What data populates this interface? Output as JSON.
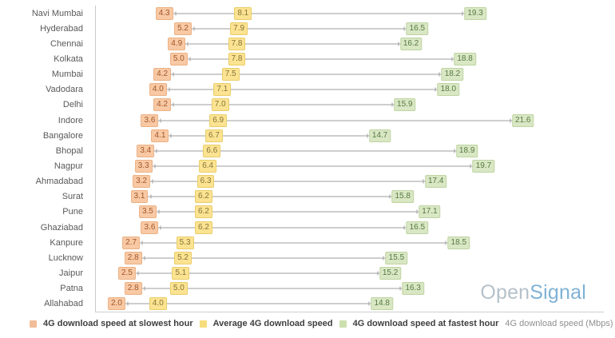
{
  "chart_data": {
    "type": "dumbbell",
    "title": "",
    "xlabel": "4G download speed (Mbps)",
    "ylabel": "",
    "x_range": [
      1.0,
      25.5
    ],
    "grid": false,
    "legend_position": "bottom",
    "categories": [
      "Navi Mumbai",
      "Hyderabad",
      "Chennai",
      "Kolkata",
      "Mumbai",
      "Vadodara",
      "Delhi",
      "Indore",
      "Bangalore",
      "Bhopal",
      "Nagpur",
      "Ahmadabad",
      "Surat",
      "Pune",
      "Ghaziabad",
      "Kanpure",
      "Lucknow",
      "Jaipur",
      "Patna",
      "Allahabad"
    ],
    "series": [
      {
        "name": "4G download speed at slowest hour",
        "color": "#f3bd98",
        "values": [
          "4.3",
          "5.2",
          "4.9",
          "5.0",
          "4.2",
          "4.0",
          "4.2",
          "3.6",
          "4.1",
          "3.4",
          "3.3",
          "3.2",
          "3.1",
          "3.5",
          "3.6",
          "2.7",
          "2.8",
          "2.5",
          "2.8",
          "2.0"
        ]
      },
      {
        "name": "Average 4G download speed",
        "color": "#f7dc7d",
        "values": [
          "8.1",
          "7.9",
          "7.8",
          "7.8",
          "7.5",
          "7.1",
          "7.0",
          "6.9",
          "6.7",
          "6.6",
          "6.4",
          "6.3",
          "6.2",
          "6.2",
          "6.2",
          "5.3",
          "5.2",
          "5.1",
          "5.0",
          "4.0"
        ]
      },
      {
        "name": "4G download speed at fastest hour",
        "color": "#ccdfae",
        "values": [
          "19.3",
          "16.5",
          "16.2",
          "18.8",
          "18.2",
          "18.0",
          "15.9",
          "21.6",
          "14.7",
          "18.9",
          "19.7",
          "17.4",
          "15.8",
          "17.1",
          "16.5",
          "18.5",
          "15.5",
          "15.2",
          "16.3",
          "14.8"
        ]
      }
    ]
  },
  "legend": {
    "items": [
      {
        "label": "4G download speed at slowest hour",
        "color": "#f3bd98"
      },
      {
        "label": "Average 4G download speed",
        "color": "#f7dc7d"
      },
      {
        "label": "4G download speed at fastest hour",
        "color": "#ccdfae"
      }
    ],
    "axis_note": "4G download speed (Mbps)"
  },
  "branding": {
    "logo_part1": "Open",
    "logo_part2": "Signal"
  }
}
